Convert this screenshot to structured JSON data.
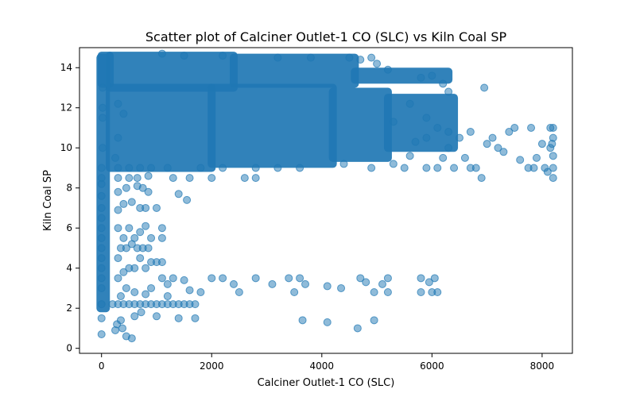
{
  "chart_data": {
    "type": "scatter",
    "title": "Scatter plot of Calciner Outlet-1 CO (SLC) vs Kiln Coal SP",
    "xlabel": "Calciner Outlet-1 CO (SLC)",
    "ylabel": "Kiln Coal SP",
    "xlim": [
      -400,
      8550
    ],
    "ylim": [
      -0.25,
      15.0
    ],
    "xticks": [
      0,
      2000,
      4000,
      6000,
      8000
    ],
    "yticks": [
      0,
      2,
      4,
      6,
      8,
      10,
      12,
      14
    ],
    "grid": false,
    "legend": "none",
    "color": "#1f77b4",
    "dense_regions": [
      {
        "x": [
          0,
          150
        ],
        "y": [
          13.2,
          14.6
        ]
      },
      {
        "x": [
          150,
          2400
        ],
        "y": [
          13.0,
          14.6
        ]
      },
      {
        "x": [
          2400,
          4600
        ],
        "y": [
          13.2,
          14.5
        ]
      },
      {
        "x": [
          4600,
          6300
        ],
        "y": [
          13.4,
          13.8
        ]
      },
      {
        "x": [
          150,
          2000
        ],
        "y": [
          9.0,
          13.0
        ]
      },
      {
        "x": [
          2000,
          4200
        ],
        "y": [
          9.2,
          13.0
        ]
      },
      {
        "x": [
          4200,
          5200
        ],
        "y": [
          9.5,
          12.8
        ]
      },
      {
        "x": [
          5200,
          6400
        ],
        "y": [
          10.0,
          12.5
        ]
      },
      {
        "x": [
          -20,
          80
        ],
        "y": [
          2.0,
          14.5
        ]
      }
    ],
    "points": [
      {
        "x": 0,
        "y": 0.7
      },
      {
        "x": 0,
        "y": 1.5
      },
      {
        "x": 0,
        "y": 2.2
      },
      {
        "x": 0,
        "y": 3.0
      },
      {
        "x": 0,
        "y": 3.5
      },
      {
        "x": 0,
        "y": 4.0
      },
      {
        "x": 0,
        "y": 4.5
      },
      {
        "x": 0,
        "y": 5.0
      },
      {
        "x": 0,
        "y": 5.5
      },
      {
        "x": 0,
        "y": 6.0
      },
      {
        "x": 0,
        "y": 6.5
      },
      {
        "x": 0,
        "y": 7.0
      },
      {
        "x": 0,
        "y": 7.6
      },
      {
        "x": 0,
        "y": 8.2
      },
      {
        "x": 0,
        "y": 8.5
      },
      {
        "x": 0,
        "y": 9.0
      },
      {
        "x": 20,
        "y": 10.0
      },
      {
        "x": 20,
        "y": 11.5
      },
      {
        "x": 20,
        "y": 12.0
      },
      {
        "x": 20,
        "y": 13.0
      },
      {
        "x": 250,
        "y": 0.9
      },
      {
        "x": 280,
        "y": 1.2
      },
      {
        "x": 350,
        "y": 1.4
      },
      {
        "x": 450,
        "y": 0.6
      },
      {
        "x": 550,
        "y": 0.5
      },
      {
        "x": 380,
        "y": 1.0
      },
      {
        "x": 600,
        "y": 1.6
      },
      {
        "x": 720,
        "y": 1.8
      },
      {
        "x": 1000,
        "y": 1.6
      },
      {
        "x": 1400,
        "y": 1.5
      },
      {
        "x": 1700,
        "y": 1.5
      },
      {
        "x": 200,
        "y": 2.2
      },
      {
        "x": 300,
        "y": 2.2
      },
      {
        "x": 400,
        "y": 2.2
      },
      {
        "x": 500,
        "y": 2.2
      },
      {
        "x": 600,
        "y": 2.2
      },
      {
        "x": 700,
        "y": 2.2
      },
      {
        "x": 800,
        "y": 2.2
      },
      {
        "x": 900,
        "y": 2.2
      },
      {
        "x": 1000,
        "y": 2.2
      },
      {
        "x": 1100,
        "y": 2.2
      },
      {
        "x": 1200,
        "y": 2.2
      },
      {
        "x": 1300,
        "y": 2.2
      },
      {
        "x": 1400,
        "y": 2.2
      },
      {
        "x": 1500,
        "y": 2.2
      },
      {
        "x": 1600,
        "y": 2.2
      },
      {
        "x": 1700,
        "y": 2.2
      },
      {
        "x": 1800,
        "y": 2.8
      },
      {
        "x": 350,
        "y": 2.6
      },
      {
        "x": 450,
        "y": 3.0
      },
      {
        "x": 600,
        "y": 2.8
      },
      {
        "x": 800,
        "y": 2.7
      },
      {
        "x": 900,
        "y": 3.0
      },
      {
        "x": 1100,
        "y": 3.5
      },
      {
        "x": 1200,
        "y": 3.2
      },
      {
        "x": 1300,
        "y": 3.5
      },
      {
        "x": 1500,
        "y": 3.4
      },
      {
        "x": 1600,
        "y": 2.9
      },
      {
        "x": 1200,
        "y": 2.6
      },
      {
        "x": 300,
        "y": 3.5
      },
      {
        "x": 400,
        "y": 3.8
      },
      {
        "x": 500,
        "y": 4.0
      },
      {
        "x": 600,
        "y": 4.0
      },
      {
        "x": 700,
        "y": 4.5
      },
      {
        "x": 800,
        "y": 4.0
      },
      {
        "x": 900,
        "y": 4.3
      },
      {
        "x": 1000,
        "y": 4.3
      },
      {
        "x": 1100,
        "y": 4.3
      },
      {
        "x": 300,
        "y": 4.5
      },
      {
        "x": 350,
        "y": 5.0
      },
      {
        "x": 450,
        "y": 5.0
      },
      {
        "x": 550,
        "y": 5.2
      },
      {
        "x": 650,
        "y": 5.0
      },
      {
        "x": 750,
        "y": 5.0
      },
      {
        "x": 850,
        "y": 5.0
      },
      {
        "x": 400,
        "y": 5.5
      },
      {
        "x": 600,
        "y": 5.5
      },
      {
        "x": 900,
        "y": 5.5
      },
      {
        "x": 1100,
        "y": 5.5
      },
      {
        "x": 300,
        "y": 6.0
      },
      {
        "x": 500,
        "y": 6.0
      },
      {
        "x": 700,
        "y": 5.8
      },
      {
        "x": 800,
        "y": 6.1
      },
      {
        "x": 1100,
        "y": 6.0
      },
      {
        "x": 300,
        "y": 6.9
      },
      {
        "x": 400,
        "y": 7.2
      },
      {
        "x": 550,
        "y": 7.3
      },
      {
        "x": 700,
        "y": 7.0
      },
      {
        "x": 800,
        "y": 7.0
      },
      {
        "x": 1000,
        "y": 7.0
      },
      {
        "x": 1400,
        "y": 7.7
      },
      {
        "x": 1550,
        "y": 7.4
      },
      {
        "x": 300,
        "y": 7.8
      },
      {
        "x": 450,
        "y": 8.0
      },
      {
        "x": 650,
        "y": 8.1
      },
      {
        "x": 750,
        "y": 8.0
      },
      {
        "x": 850,
        "y": 7.8
      },
      {
        "x": 300,
        "y": 8.5
      },
      {
        "x": 500,
        "y": 8.5
      },
      {
        "x": 650,
        "y": 8.5
      },
      {
        "x": 850,
        "y": 8.6
      },
      {
        "x": 1300,
        "y": 8.5
      },
      {
        "x": 1600,
        "y": 8.5
      },
      {
        "x": 2000,
        "y": 8.5
      },
      {
        "x": 2600,
        "y": 8.5
      },
      {
        "x": 2800,
        "y": 8.5
      },
      {
        "x": 2000,
        "y": 3.5
      },
      {
        "x": 2200,
        "y": 3.5
      },
      {
        "x": 2400,
        "y": 3.2
      },
      {
        "x": 2500,
        "y": 2.8
      },
      {
        "x": 2800,
        "y": 3.5
      },
      {
        "x": 3100,
        "y": 3.2
      },
      {
        "x": 3400,
        "y": 3.5
      },
      {
        "x": 3500,
        "y": 2.8
      },
      {
        "x": 3600,
        "y": 3.5
      },
      {
        "x": 3700,
        "y": 3.2
      },
      {
        "x": 4100,
        "y": 3.1
      },
      {
        "x": 4350,
        "y": 3.0
      },
      {
        "x": 4700,
        "y": 3.5
      },
      {
        "x": 4800,
        "y": 3.3
      },
      {
        "x": 4950,
        "y": 2.8
      },
      {
        "x": 5100,
        "y": 3.2
      },
      {
        "x": 5200,
        "y": 3.5
      },
      {
        "x": 5200,
        "y": 2.8
      },
      {
        "x": 5800,
        "y": 3.5
      },
      {
        "x": 5800,
        "y": 2.8
      },
      {
        "x": 5950,
        "y": 3.3
      },
      {
        "x": 6000,
        "y": 2.8
      },
      {
        "x": 6050,
        "y": 3.5
      },
      {
        "x": 6100,
        "y": 2.8
      },
      {
        "x": 3650,
        "y": 1.4
      },
      {
        "x": 4100,
        "y": 1.3
      },
      {
        "x": 4650,
        "y": 1.0
      },
      {
        "x": 4950,
        "y": 1.4
      },
      {
        "x": 6200,
        "y": 9.5
      },
      {
        "x": 6300,
        "y": 10.0
      },
      {
        "x": 6400,
        "y": 9.0
      },
      {
        "x": 6500,
        "y": 10.5
      },
      {
        "x": 6600,
        "y": 9.5
      },
      {
        "x": 6700,
        "y": 10.8
      },
      {
        "x": 6800,
        "y": 9.0
      },
      {
        "x": 6900,
        "y": 8.5
      },
      {
        "x": 6950,
        "y": 13.0
      },
      {
        "x": 7000,
        "y": 10.2
      },
      {
        "x": 7100,
        "y": 10.5
      },
      {
        "x": 7200,
        "y": 10.0
      },
      {
        "x": 7300,
        "y": 9.8
      },
      {
        "x": 7400,
        "y": 10.8
      },
      {
        "x": 7500,
        "y": 11.0
      },
      {
        "x": 7600,
        "y": 9.4
      },
      {
        "x": 7750,
        "y": 9.0
      },
      {
        "x": 7800,
        "y": 11.0
      },
      {
        "x": 7850,
        "y": 9.0
      },
      {
        "x": 7900,
        "y": 9.5
      },
      {
        "x": 8000,
        "y": 10.2
      },
      {
        "x": 8050,
        "y": 9.0
      },
      {
        "x": 8100,
        "y": 8.8
      },
      {
        "x": 8150,
        "y": 11.0
      },
      {
        "x": 8150,
        "y": 10.0
      },
      {
        "x": 8200,
        "y": 11.0
      },
      {
        "x": 8200,
        "y": 10.5
      },
      {
        "x": 8200,
        "y": 9.6
      },
      {
        "x": 8200,
        "y": 9.0
      },
      {
        "x": 8200,
        "y": 8.5
      },
      {
        "x": 8180,
        "y": 10.2
      },
      {
        "x": 5600,
        "y": 9.6
      },
      {
        "x": 5900,
        "y": 9.0
      },
      {
        "x": 6100,
        "y": 9.0
      },
      {
        "x": 6300,
        "y": 10.8
      },
      {
        "x": 6700,
        "y": 9.0
      },
      {
        "x": 4900,
        "y": 9.0
      },
      {
        "x": 5300,
        "y": 9.2
      },
      {
        "x": 5500,
        "y": 9.0
      },
      {
        "x": 4900,
        "y": 14.5
      },
      {
        "x": 4700,
        "y": 14.4
      },
      {
        "x": 4500,
        "y": 14.5
      },
      {
        "x": 5000,
        "y": 14.2
      },
      {
        "x": 5200,
        "y": 13.9
      },
      {
        "x": 5800,
        "y": 13.5
      },
      {
        "x": 6000,
        "y": 13.6
      },
      {
        "x": 6200,
        "y": 13.2
      },
      {
        "x": 6300,
        "y": 12.8
      },
      {
        "x": 1100,
        "y": 14.7
      },
      {
        "x": 1500,
        "y": 14.6
      },
      {
        "x": 2200,
        "y": 14.6
      },
      {
        "x": 3200,
        "y": 14.5
      },
      {
        "x": 3800,
        "y": 14.5
      },
      {
        "x": 2800,
        "y": 9.0
      },
      {
        "x": 3200,
        "y": 9.0
      },
      {
        "x": 3600,
        "y": 9.0
      },
      {
        "x": 4400,
        "y": 9.2
      },
      {
        "x": 2200,
        "y": 9.0
      },
      {
        "x": 1800,
        "y": 9.0
      },
      {
        "x": 1200,
        "y": 9.0
      },
      {
        "x": 300,
        "y": 12.2
      },
      {
        "x": 400,
        "y": 11.7
      },
      {
        "x": 300,
        "y": 10.5
      },
      {
        "x": 250,
        "y": 9.5
      },
      {
        "x": 300,
        "y": 9.0
      },
      {
        "x": 500,
        "y": 9.0
      },
      {
        "x": 700,
        "y": 9.0
      },
      {
        "x": 900,
        "y": 9.0
      },
      {
        "x": 5700,
        "y": 10.3
      },
      {
        "x": 5900,
        "y": 10.5
      },
      {
        "x": 6100,
        "y": 11.0
      },
      {
        "x": 5900,
        "y": 11.5
      },
      {
        "x": 5600,
        "y": 12.2
      },
      {
        "x": 5300,
        "y": 11.3
      }
    ]
  }
}
